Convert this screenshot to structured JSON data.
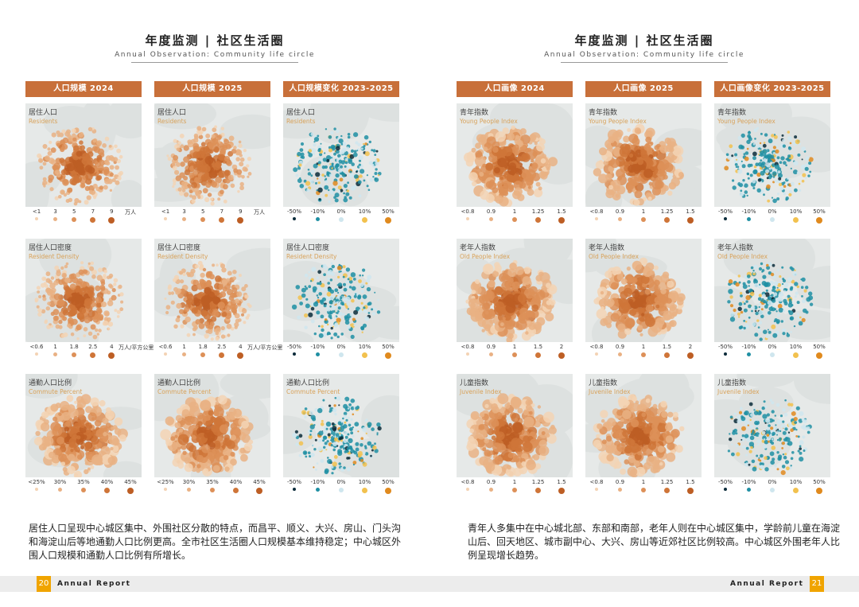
{
  "pages": [
    {
      "title_zh": "年度监测 | 社区生活圈",
      "title_en": "Annual Observation: Community life circle",
      "page_number": "20",
      "report_label": "Annual Report",
      "columns": [
        {
          "header": "人口规模 2024",
          "cells": [
            {
              "label_zh": "居住人口",
              "label_en": "Residents",
              "legend": [
                "<1",
                "3",
                "5",
                "7",
                "9",
                "万人"
              ]
            },
            {
              "label_zh": "居住人口密度",
              "label_en": "Resident Density",
              "legend": [
                "<0.6",
                "1",
                "1.8",
                "2.5",
                "4",
                "万人/平方公里"
              ]
            },
            {
              "label_zh": "通勤人口比例",
              "label_en": "Commute Percent",
              "legend": [
                "<25%",
                "30%",
                "35%",
                "40%",
                "45%"
              ]
            }
          ]
        },
        {
          "header": "人口规模 2025",
          "cells": [
            {
              "label_zh": "居住人口",
              "label_en": "Residents",
              "legend": [
                "<1",
                "3",
                "5",
                "7",
                "9",
                "万人"
              ]
            },
            {
              "label_zh": "居住人口密度",
              "label_en": "Resident Density",
              "legend": [
                "<0.6",
                "1",
                "1.8",
                "2.5",
                "4",
                "万人/平方公里"
              ]
            },
            {
              "label_zh": "通勤人口比例",
              "label_en": "Commute Percent",
              "legend": [
                "<25%",
                "30%",
                "35%",
                "40%",
                "45%"
              ]
            }
          ]
        },
        {
          "header": "人口规模变化 2023-2025",
          "cells": [
            {
              "label_zh": "居住人口",
              "label_en": "Residents",
              "legend": [
                "-50%",
                "-10%",
                "0%",
                "10%",
                "50%"
              ]
            },
            {
              "label_zh": "居住人口密度",
              "label_en": "Resident Density",
              "legend": [
                "-50%",
                "-10%",
                "0%",
                "10%",
                "50%"
              ]
            },
            {
              "label_zh": "通勤人口比例",
              "label_en": "Commute Percent",
              "legend": [
                "-50%",
                "-10%",
                "0%",
                "10%",
                "50%"
              ]
            }
          ]
        }
      ],
      "description": "居住人口呈现中心城区集中、外围社区分散的特点，而昌平、顺义、大兴、房山、门头沟和海淀山后等地通勤人口比例更高。全市社区生活圈人口规模基本维持稳定；中心城区外围人口规模和通勤人口比例有所增长。"
    },
    {
      "title_zh": "年度监测 | 社区生活圈",
      "title_en": "Annual Observation: Community life circle",
      "page_number": "21",
      "report_label": "Annual Report",
      "columns": [
        {
          "header": "人口画像 2024",
          "cells": [
            {
              "label_zh": "青年指数",
              "label_en": "Young People Index",
              "legend": [
                "<0.8",
                "0.9",
                "1",
                "1.25",
                "1.5"
              ]
            },
            {
              "label_zh": "老年人指数",
              "label_en": "Old People Index",
              "legend": [
                "<0.8",
                "0.9",
                "1",
                "1.5",
                "2"
              ]
            },
            {
              "label_zh": "儿童指数",
              "label_en": "Juvenile Index",
              "legend": [
                "<0.8",
                "0.9",
                "1",
                "1.25",
                "1.5"
              ]
            }
          ]
        },
        {
          "header": "人口画像 2025",
          "cells": [
            {
              "label_zh": "青年指数",
              "label_en": "Young People Index",
              "legend": [
                "<0.8",
                "0.9",
                "1",
                "1.25",
                "1.5"
              ]
            },
            {
              "label_zh": "老年人指数",
              "label_en": "Old People Index",
              "legend": [
                "<0.8",
                "0.9",
                "1",
                "1.5",
                "2"
              ]
            },
            {
              "label_zh": "儿童指数",
              "label_en": "Juvenile Index",
              "legend": [
                "<0.8",
                "0.9",
                "1",
                "1.25",
                "1.5"
              ]
            }
          ]
        },
        {
          "header": "人口画像变化 2023-2025",
          "cells": [
            {
              "label_zh": "青年指数",
              "label_en": "Young People Index",
              "legend": [
                "-50%",
                "-10%",
                "0%",
                "10%",
                "50%"
              ]
            },
            {
              "label_zh": "老年人指数",
              "label_en": "Old People Index",
              "legend": [
                "-50%",
                "-10%",
                "0%",
                "10%",
                "50%"
              ]
            },
            {
              "label_zh": "儿童指数",
              "label_en": "Juvenile Index",
              "legend": [
                "-50%",
                "-10%",
                "0%",
                "10%",
                "50%"
              ]
            }
          ]
        }
      ],
      "description": "青年人多集中在中心城北部、东部和南部，老年人则在中心城区集中，学龄前儿童在海淀山后、回天地区、城市副中心、大兴、房山等近郊社区比例较高。中心城区外围老年人比例呈现增长趋势。"
    }
  ],
  "colors": {
    "header_bg": "#c8703a",
    "scale_orange": [
      "#f3d3b4",
      "#e9b184",
      "#dd9058",
      "#cf7538",
      "#bd5e24"
    ],
    "scale_change": [
      "#0b2b3a",
      "#1f8fa3",
      "#cfe6ee",
      "#f2c14e",
      "#e08a1e"
    ],
    "page_number_bg": "#f0a400"
  }
}
